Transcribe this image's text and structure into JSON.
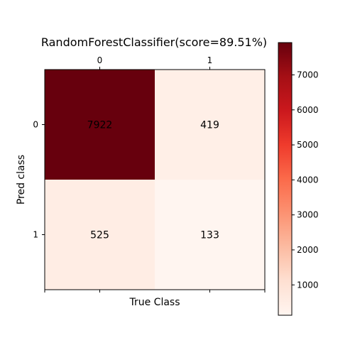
{
  "chart_data": {
    "type": "heatmap",
    "title": "RandomForestClassifier(score=89.51%)",
    "xlabel": "True Class",
    "ylabel": "Pred class",
    "x_categories": [
      "0",
      "1"
    ],
    "y_categories": [
      "0",
      "1"
    ],
    "values": [
      [
        7922,
        419
      ],
      [
        525,
        133
      ]
    ],
    "colormap": "Reds",
    "colorbar": {
      "min": 133,
      "max": 7922,
      "ticks": [
        1000,
        2000,
        3000,
        4000,
        5000,
        6000,
        7000
      ],
      "tick_labels": [
        "1000",
        "2000",
        "3000",
        "4000",
        "5000",
        "6000",
        "7000"
      ]
    },
    "x_ticks_position": "top",
    "grid": false
  }
}
